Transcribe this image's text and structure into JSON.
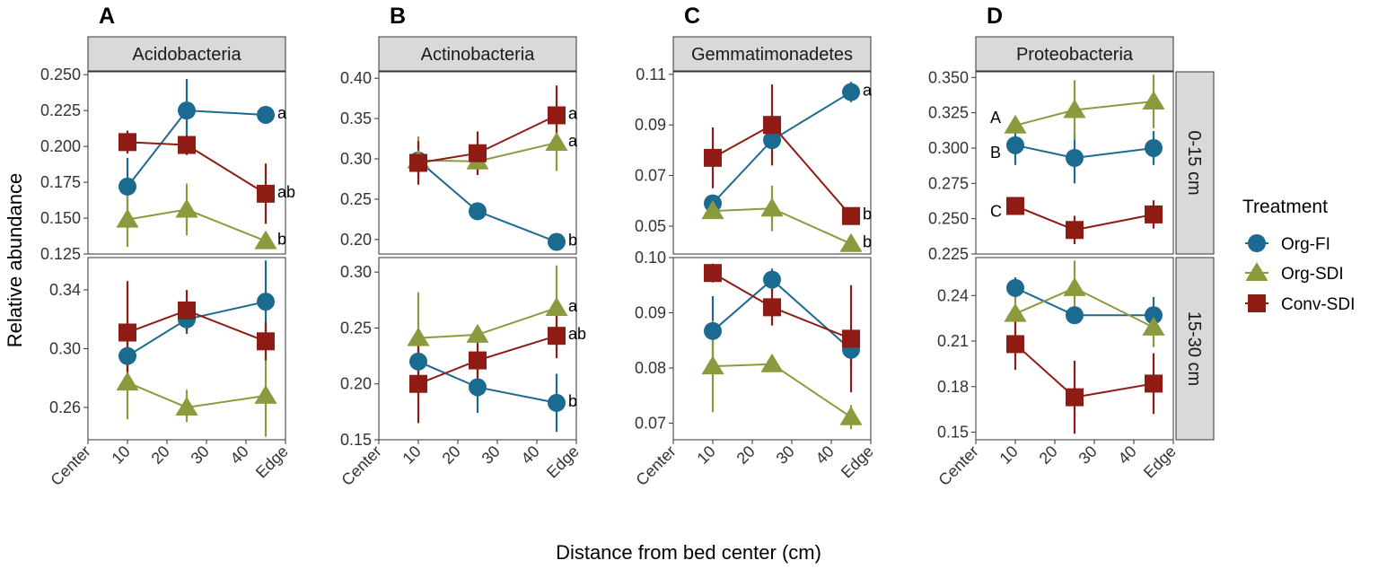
{
  "chart_data": {
    "type": "line",
    "x_label": "Distance from bed center (cm)",
    "y_label": "Relative abundance",
    "x_ticks": [
      "Center",
      "10",
      "20",
      "30",
      "40",
      "Edge"
    ],
    "x_values": [
      10,
      25,
      45
    ],
    "xlim": [
      0,
      50
    ],
    "legend": {
      "title": "Treatment",
      "placement": "right",
      "entries": [
        {
          "name": "Org-FI",
          "color": "#1B6A8F",
          "shape": "circle"
        },
        {
          "name": "Org-SDI",
          "color": "#8C9A3E",
          "shape": "triangle"
        },
        {
          "name": "Conv-SDI",
          "color": "#8E1B14",
          "shape": "square"
        }
      ]
    },
    "rows": [
      "0-15 cm",
      "15-30 cm"
    ],
    "panels": [
      {
        "letter": "A",
        "phylum": "Acidobacteria",
        "depths": [
          {
            "depth": "0-15 cm",
            "ylim": [
              0.125,
              0.252
            ],
            "yticks": [
              0.125,
              0.15,
              0.175,
              0.2,
              0.225,
              0.25
            ],
            "ytick_labels": [
              "0.125",
              "0.150",
              "0.175",
              "0.200",
              "0.225",
              "0.250"
            ],
            "series": [
              {
                "name": "Org-FI",
                "values": [
                  0.172,
                  0.225,
                  0.222
                ],
                "lower": [
                  0.153,
                  0.203,
                  0.218
                ],
                "upper": [
                  0.192,
                  0.247,
                  0.226
                ]
              },
              {
                "name": "Org-SDI",
                "values": [
                  0.149,
                  0.156,
                  0.134
                ],
                "lower": [
                  0.13,
                  0.138,
                  0.129
                ],
                "upper": [
                  0.168,
                  0.174,
                  0.139
                ]
              },
              {
                "name": "Conv-SDI",
                "values": [
                  0.203,
                  0.201,
                  0.167
                ],
                "lower": [
                  0.195,
                  0.194,
                  0.146
                ],
                "upper": [
                  0.211,
                  0.208,
                  0.188
                ]
              }
            ],
            "letters": [
              {
                "text": "a",
                "series": "Org-FI"
              },
              {
                "text": "ab",
                "series": "Conv-SDI"
              },
              {
                "text": "b",
                "series": "Org-SDI"
              }
            ]
          },
          {
            "depth": "15-30 cm",
            "ylim": [
              0.238,
              0.362
            ],
            "yticks": [
              0.26,
              0.3,
              0.34
            ],
            "ytick_labels": [
              "0.26",
              "0.30",
              "0.34"
            ],
            "series": [
              {
                "name": "Org-FI",
                "values": [
                  0.295,
                  0.32,
                  0.332
                ],
                "lower": [
                  0.285,
                  0.31,
                  0.303
                ],
                "upper": [
                  0.305,
                  0.33,
                  0.36
                ]
              },
              {
                "name": "Org-SDI",
                "values": [
                  0.277,
                  0.26,
                  0.268
                ],
                "lower": [
                  0.252,
                  0.25,
                  0.24
                ],
                "upper": [
                  0.302,
                  0.272,
                  0.297
                ]
              },
              {
                "name": "Conv-SDI",
                "values": [
                  0.311,
                  0.326,
                  0.305
                ],
                "lower": [
                  0.275,
                  0.312,
                  0.292
                ],
                "upper": [
                  0.346,
                  0.34,
                  0.318
                ]
              }
            ],
            "letters": []
          }
        ]
      },
      {
        "letter": "B",
        "phylum": "Actinobacteria",
        "depths": [
          {
            "depth": "0-15 cm",
            "ylim": [
              0.182,
              0.408
            ],
            "yticks": [
              0.2,
              0.25,
              0.3,
              0.35,
              0.4
            ],
            "ytick_labels": [
              "0.20",
              "0.25",
              "0.30",
              "0.35",
              "0.40"
            ],
            "series": [
              {
                "name": "Org-FI",
                "values": [
                  0.298,
                  0.235,
                  0.197
                ],
                "lower": [
                  0.292,
                  0.228,
                  0.19
                ],
                "upper": [
                  0.304,
                  0.242,
                  0.204
                ]
              },
              {
                "name": "Org-SDI",
                "values": [
                  0.298,
                  0.297,
                  0.32
                ],
                "lower": [
                  0.278,
                  0.285,
                  0.285
                ],
                "upper": [
                  0.328,
                  0.309,
                  0.345
                ]
              },
              {
                "name": "Conv-SDI",
                "values": [
                  0.295,
                  0.307,
                  0.354
                ],
                "lower": [
                  0.268,
                  0.28,
                  0.317
                ],
                "upper": [
                  0.322,
                  0.334,
                  0.391
                ]
              }
            ],
            "letters": [
              {
                "text": "a",
                "series": "Conv-SDI"
              },
              {
                "text": "a",
                "series": "Org-SDI"
              },
              {
                "text": "b",
                "series": "Org-FI"
              }
            ]
          },
          {
            "depth": "15-30 cm",
            "ylim": [
              0.15,
              0.313
            ],
            "yticks": [
              0.15,
              0.2,
              0.25,
              0.3
            ],
            "ytick_labels": [
              "0.15",
              "0.20",
              "0.25",
              "0.30"
            ],
            "series": [
              {
                "name": "Org-FI",
                "values": [
                  0.22,
                  0.197,
                  0.183
                ],
                "lower": [
                  0.21,
                  0.174,
                  0.157
                ],
                "upper": [
                  0.23,
                  0.22,
                  0.209
                ]
              },
              {
                "name": "Org-SDI",
                "values": [
                  0.241,
                  0.244,
                  0.268
                ],
                "lower": [
                  0.2,
                  0.237,
                  0.232
                ],
                "upper": [
                  0.282,
                  0.251,
                  0.306
                ]
              },
              {
                "name": "Conv-SDI",
                "values": [
                  0.2,
                  0.221,
                  0.243
                ],
                "lower": [
                  0.165,
                  0.199,
                  0.223
                ],
                "upper": [
                  0.235,
                  0.243,
                  0.263
                ]
              }
            ],
            "letters": [
              {
                "text": "a",
                "series": "Org-SDI"
              },
              {
                "text": "ab",
                "series": "Conv-SDI"
              },
              {
                "text": "b",
                "series": "Org-FI"
              }
            ]
          }
        ]
      },
      {
        "letter": "C",
        "phylum": "Gemmatimonadetes",
        "depths": [
          {
            "depth": "0-15 cm",
            "ylim": [
              0.039,
              0.111
            ],
            "yticks": [
              0.05,
              0.07,
              0.09,
              0.11
            ],
            "ytick_labels": [
              "0.05",
              "0.07",
              "0.09",
              "0.11"
            ],
            "series": [
              {
                "name": "Org-FI",
                "values": [
                  0.059,
                  0.084,
                  0.103
                ],
                "lower": [
                  0.057,
                  0.081,
                  0.099
                ],
                "upper": [
                  0.061,
                  0.087,
                  0.107
                ]
              },
              {
                "name": "Org-SDI",
                "values": [
                  0.056,
                  0.057,
                  0.043
                ],
                "lower": [
                  0.054,
                  0.048,
                  0.04
                ],
                "upper": [
                  0.058,
                  0.066,
                  0.046
                ]
              },
              {
                "name": "Conv-SDI",
                "values": [
                  0.077,
                  0.09,
                  0.054
                ],
                "lower": [
                  0.065,
                  0.074,
                  0.052
                ],
                "upper": [
                  0.089,
                  0.106,
                  0.056
                ]
              }
            ],
            "letters": [
              {
                "text": "a",
                "series": "Org-FI"
              },
              {
                "text": "b",
                "series": "Conv-SDI"
              },
              {
                "text": "b",
                "series": "Org-SDI"
              }
            ]
          },
          {
            "depth": "15-30 cm",
            "ylim": [
              0.067,
              0.1
            ],
            "yticks": [
              0.07,
              0.08,
              0.09,
              0.1
            ],
            "ytick_labels": [
              "0.07",
              "0.08",
              "0.09",
              "0.10"
            ],
            "series": [
              {
                "name": "Org-FI",
                "values": [
                  0.0867,
                  0.096,
                  0.0833
                ],
                "lower": [
                  0.081,
                  0.094,
                  0.08
                ],
                "upper": [
                  0.093,
                  0.098,
                  0.0866
                ]
              },
              {
                "name": "Org-SDI",
                "values": [
                  0.0803,
                  0.0807,
                  0.0711
                ],
                "lower": [
                  0.072,
                  0.0797,
                  0.0689
                ],
                "upper": [
                  0.0886,
                  0.0817,
                  0.0733
                ]
              },
              {
                "name": "Conv-SDI",
                "values": [
                  0.0972,
                  0.091,
                  0.0853
                ],
                "lower": [
                  0.0955,
                  0.0877,
                  0.0756
                ],
                "upper": [
                  0.0989,
                  0.0943,
                  0.095
                ]
              }
            ],
            "letters": []
          }
        ]
      },
      {
        "letter": "D",
        "phylum": "Proteobacteria",
        "depths": [
          {
            "depth": "0-15 cm",
            "ylim": [
              0.225,
              0.354
            ],
            "yticks": [
              0.225,
              0.25,
              0.275,
              0.3,
              0.325,
              0.35
            ],
            "ytick_labels": [
              "0.225",
              "0.250",
              "0.275",
              "0.300",
              "0.325",
              "0.350"
            ],
            "series": [
              {
                "name": "Org-FI",
                "values": [
                  0.302,
                  0.293,
                  0.3
                ],
                "lower": [
                  0.288,
                  0.275,
                  0.288
                ],
                "upper": [
                  0.316,
                  0.311,
                  0.312
                ]
              },
              {
                "name": "Org-SDI",
                "values": [
                  0.316,
                  0.327,
                  0.333
                ],
                "lower": [
                  0.312,
                  0.306,
                  0.314
                ],
                "upper": [
                  0.32,
                  0.348,
                  0.352
                ]
              },
              {
                "name": "Conv-SDI",
                "values": [
                  0.259,
                  0.242,
                  0.253
                ],
                "lower": [
                  0.256,
                  0.232,
                  0.243
                ],
                "upper": [
                  0.262,
                  0.252,
                  0.263
                ]
              }
            ],
            "letters": [
              {
                "text": "A",
                "series": "Org-SDI"
              },
              {
                "text": "B",
                "series": "Org-FI"
              },
              {
                "text": "C",
                "series": "Conv-SDI"
              }
            ]
          },
          {
            "depth": "15-30 cm",
            "ylim": [
              0.145,
              0.265
            ],
            "yticks": [
              0.15,
              0.18,
              0.21,
              0.24
            ],
            "ytick_labels": [
              "0.15",
              "0.18",
              "0.21",
              "0.24"
            ],
            "series": [
              {
                "name": "Org-FI",
                "values": [
                  0.245,
                  0.227,
                  0.227
                ],
                "lower": [
                  0.238,
                  0.222,
                  0.215
                ],
                "upper": [
                  0.252,
                  0.232,
                  0.239
                ]
              },
              {
                "name": "Org-SDI",
                "values": [
                  0.228,
                  0.245,
                  0.219
                ],
                "lower": [
                  0.215,
                  0.227,
                  0.206
                ],
                "upper": [
                  0.241,
                  0.263,
                  0.232
                ]
              },
              {
                "name": "Conv-SDI",
                "values": [
                  0.208,
                  0.173,
                  0.182
                ],
                "lower": [
                  0.191,
                  0.149,
                  0.162
                ],
                "upper": [
                  0.225,
                  0.197,
                  0.202
                ]
              }
            ],
            "letters": []
          }
        ]
      }
    ]
  }
}
